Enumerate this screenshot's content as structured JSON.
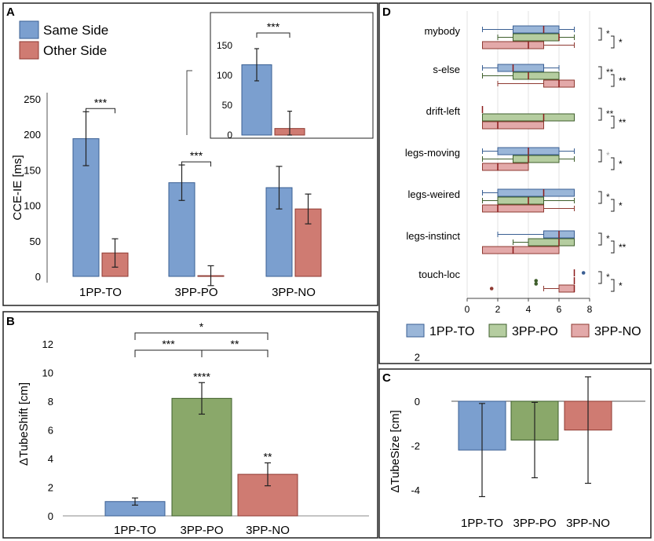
{
  "colors": {
    "blue": "#7b9fcf",
    "blue_edge": "#3a5f93",
    "green": "#8aa86a",
    "green_edge": "#3f5f2c",
    "red": "#cf7b72",
    "red_edge": "#8f3a32",
    "box_blue": "#9ab6d8",
    "box_green": "#b5cda0",
    "box_red": "#e3a9a9"
  },
  "panel_letters": {
    "a": "A",
    "b": "B",
    "c": "C",
    "d": "D"
  },
  "chart_data": [
    {
      "id": "A",
      "type": "bar",
      "ylabel": "CCE-IE  [ms]",
      "ylim": [
        0,
        250
      ],
      "yticks": [
        0,
        50,
        100,
        150,
        200,
        250
      ],
      "categories": [
        "1PP-TO",
        "3PP-PO",
        "3PP-NO"
      ],
      "series": [
        {
          "name": "Same Side",
          "values": [
            194,
            132,
            125
          ],
          "errors": [
            38,
            25,
            30
          ]
        },
        {
          "name": "Other Side",
          "values": [
            33,
            1,
            95
          ],
          "errors": [
            20,
            14,
            21
          ]
        }
      ],
      "significance": [
        "***",
        "***",
        ""
      ],
      "legend": [
        "Same Side",
        "Other Side"
      ],
      "inset": {
        "ylim": [
          0,
          170
        ],
        "yticks": [
          0,
          50,
          100,
          150
        ],
        "values": [
          118,
          11
        ],
        "errors": [
          27,
          29
        ],
        "significance": "***"
      }
    },
    {
      "id": "B",
      "type": "bar",
      "ylabel": "ΔTubeShift  [cm]",
      "ylim": [
        0,
        12
      ],
      "yticks": [
        0,
        2,
        4,
        6,
        8,
        10,
        12
      ],
      "categories": [
        "1PP-TO",
        "3PP-PO",
        "3PP-NO"
      ],
      "values": [
        1.0,
        8.2,
        2.9
      ],
      "errors": [
        0.25,
        1.1,
        0.8
      ],
      "bar_labels": [
        "",
        "****",
        "**"
      ],
      "brackets": [
        {
          "from": 0,
          "to": 2,
          "label": "*"
        },
        {
          "from": 0,
          "to": 1,
          "label": "***"
        },
        {
          "from": 1,
          "to": 2,
          "label": "**"
        }
      ]
    },
    {
      "id": "C",
      "type": "bar",
      "ylabel": "ΔTubeSize  [cm]",
      "ylim": [
        -5,
        2
      ],
      "yticks": [
        -4,
        -2,
        0,
        2
      ],
      "categories": [
        "1PP-TO",
        "3PP-PO",
        "3PP-NO"
      ],
      "values": [
        -2.2,
        -1.75,
        -1.3
      ],
      "errors": [
        2.1,
        1.7,
        2.4
      ]
    },
    {
      "id": "D",
      "type": "box",
      "xlim": [
        0,
        8
      ],
      "xticks": [
        0,
        2,
        4,
        6,
        8
      ],
      "rows": [
        "mybody",
        "s-else",
        "drift-left",
        "legs-moving",
        "legs-weired",
        "legs-instinct",
        "touch-loc"
      ],
      "legend": [
        "1PP-TO",
        "3PP-PO",
        "3PP-NO"
      ],
      "boxes": [
        [
          [
            1,
            3,
            5,
            6,
            7
          ],
          [
            2,
            3,
            6,
            6,
            7
          ],
          [
            1,
            1,
            4,
            5,
            7
          ]
        ],
        [
          [
            1,
            2,
            3,
            5,
            6
          ],
          [
            1,
            3,
            4,
            6,
            6
          ],
          [
            2,
            5,
            6,
            7,
            7
          ]
        ],
        [
          [
            1,
            1,
            1,
            1,
            1
          ],
          [
            1,
            1,
            5,
            7,
            7
          ],
          [
            1,
            1,
            2,
            5,
            5
          ]
        ],
        [
          [
            1,
            2,
            4,
            6,
            7
          ],
          [
            1,
            3,
            4,
            6,
            7
          ],
          [
            1,
            1,
            2,
            4,
            4
          ]
        ],
        [
          [
            1,
            2,
            5,
            7,
            7
          ],
          [
            1,
            2,
            4,
            5,
            7
          ],
          [
            1,
            1,
            2,
            5,
            7
          ]
        ],
        [
          [
            2,
            5,
            6,
            7,
            7
          ],
          [
            3,
            4,
            6,
            7,
            7
          ],
          [
            1,
            1,
            3,
            6,
            6
          ]
        ],
        [
          [
            7,
            7,
            7,
            7,
            7
          ],
          [
            7,
            7,
            7,
            7,
            7
          ],
          [
            5,
            6,
            7,
            7,
            7
          ]
        ]
      ],
      "outliers": [
        {
          "row": 6,
          "series": 0,
          "value": 7.6
        },
        {
          "row": 6,
          "series": 1,
          "value": 4.5
        },
        {
          "row": 6,
          "series": 1,
          "value": 4.5
        },
        {
          "row": 6,
          "series": 2,
          "value": 1.6
        }
      ],
      "sig_pairs": [
        [
          "*",
          "*"
        ],
        [
          "**",
          "**"
        ],
        [
          "**",
          "**"
        ],
        [
          "*",
          "*"
        ],
        [
          "*",
          "*"
        ],
        [
          "*",
          "**"
        ],
        [
          "*",
          "*"
        ]
      ]
    }
  ]
}
